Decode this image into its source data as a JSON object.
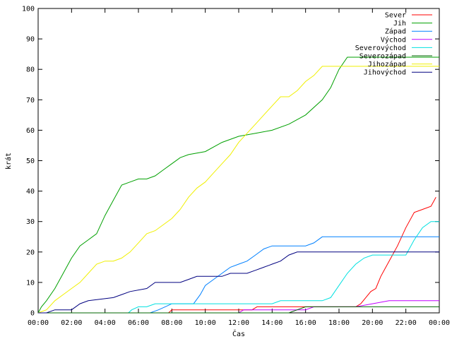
{
  "chart_data": {
    "type": "line",
    "xlabel": "Čas",
    "ylabel": "krát",
    "xlim": [
      0,
      24
    ],
    "ylim": [
      0,
      100
    ],
    "x_ticks": [
      "00:00",
      "02:00",
      "04:00",
      "06:00",
      "08:00",
      "10:00",
      "12:00",
      "14:00",
      "16:00",
      "18:00",
      "20:00",
      "22:00",
      "00:00"
    ],
    "y_ticks": [
      0,
      10,
      20,
      30,
      40,
      50,
      60,
      70,
      80,
      90,
      100
    ],
    "grid": false,
    "legend_position": "top-right",
    "series": [
      {
        "name": "Sever",
        "color": "#ff0000",
        "points": [
          [
            0,
            0
          ],
          [
            7.8,
            0
          ],
          [
            8,
            1
          ],
          [
            12.8,
            1
          ],
          [
            13.1,
            2
          ],
          [
            19,
            2
          ],
          [
            19.3,
            3
          ],
          [
            19.6,
            5
          ],
          [
            19.9,
            7
          ],
          [
            20.2,
            8
          ],
          [
            20.5,
            12
          ],
          [
            21,
            17
          ],
          [
            21.5,
            22
          ],
          [
            22,
            28
          ],
          [
            22.5,
            33
          ],
          [
            23,
            34
          ],
          [
            23.5,
            35
          ],
          [
            23.8,
            38
          ]
        ]
      },
      {
        "name": "Jih",
        "color": "#00a000",
        "points": [
          [
            0,
            0
          ],
          [
            0.2,
            2
          ],
          [
            0.5,
            4
          ],
          [
            1,
            8
          ],
          [
            1.5,
            13
          ],
          [
            2,
            18
          ],
          [
            2.5,
            22
          ],
          [
            3,
            24
          ],
          [
            3.5,
            26
          ],
          [
            4,
            32
          ],
          [
            4.5,
            37
          ],
          [
            5,
            42
          ],
          [
            5.5,
            43
          ],
          [
            6,
            44
          ],
          [
            6.5,
            44
          ],
          [
            7,
            45
          ],
          [
            7.5,
            47
          ],
          [
            8,
            49
          ],
          [
            8.5,
            51
          ],
          [
            9,
            52
          ],
          [
            10,
            53
          ],
          [
            11,
            56
          ],
          [
            12,
            58
          ],
          [
            13,
            59
          ],
          [
            14,
            60
          ],
          [
            15,
            62
          ],
          [
            16,
            65
          ],
          [
            17,
            70
          ],
          [
            17.5,
            74
          ],
          [
            18,
            80
          ],
          [
            18.5,
            84
          ],
          [
            24,
            84
          ]
        ]
      },
      {
        "name": "Západ",
        "color": "#0080ff",
        "points": [
          [
            0,
            0
          ],
          [
            6.7,
            0
          ],
          [
            7.2,
            1
          ],
          [
            7.6,
            2
          ],
          [
            8,
            3
          ],
          [
            9.3,
            3
          ],
          [
            9.7,
            6
          ],
          [
            10,
            9
          ],
          [
            10.5,
            11
          ],
          [
            11,
            13
          ],
          [
            11.5,
            15
          ],
          [
            12,
            16
          ],
          [
            12.5,
            17
          ],
          [
            13,
            19
          ],
          [
            13.5,
            21
          ],
          [
            14,
            22
          ],
          [
            16,
            22
          ],
          [
            16.5,
            23
          ],
          [
            17,
            25
          ],
          [
            24,
            25
          ]
        ]
      },
      {
        "name": "Východ",
        "color": "#c000ff",
        "points": [
          [
            0,
            0
          ],
          [
            12,
            0
          ],
          [
            12.3,
            1
          ],
          [
            16,
            1
          ],
          [
            16.5,
            2
          ],
          [
            19,
            2
          ],
          [
            20,
            3
          ],
          [
            21,
            4
          ],
          [
            24,
            4
          ]
        ]
      },
      {
        "name": "Severovýchod",
        "color": "#00e0e0",
        "points": [
          [
            0,
            0
          ],
          [
            5.4,
            0
          ],
          [
            5.6,
            1
          ],
          [
            6,
            2
          ],
          [
            6.5,
            2
          ],
          [
            7,
            3
          ],
          [
            14,
            3
          ],
          [
            14.5,
            4
          ],
          [
            17,
            4
          ],
          [
            17.5,
            5
          ],
          [
            18,
            9
          ],
          [
            18.5,
            13
          ],
          [
            19,
            16
          ],
          [
            19.5,
            18
          ],
          [
            20,
            19
          ],
          [
            22,
            19
          ],
          [
            22.5,
            24
          ],
          [
            23,
            28
          ],
          [
            23.5,
            30
          ],
          [
            24,
            30
          ]
        ]
      },
      {
        "name": "Severozápad",
        "color": "#006400",
        "points": [
          [
            0,
            0
          ],
          [
            15,
            0
          ],
          [
            15.5,
            1
          ],
          [
            16,
            2
          ],
          [
            24,
            2
          ]
        ]
      },
      {
        "name": "Jihozápad",
        "color": "#f0f000",
        "points": [
          [
            0,
            0
          ],
          [
            0.5,
            1
          ],
          [
            1,
            4
          ],
          [
            1.5,
            6
          ],
          [
            2,
            8
          ],
          [
            2.5,
            10
          ],
          [
            3,
            13
          ],
          [
            3.5,
            16
          ],
          [
            4,
            17
          ],
          [
            4.5,
            17
          ],
          [
            5,
            18
          ],
          [
            5.5,
            20
          ],
          [
            6,
            23
          ],
          [
            6.5,
            26
          ],
          [
            7,
            27
          ],
          [
            7.5,
            29
          ],
          [
            8,
            31
          ],
          [
            8.5,
            34
          ],
          [
            9,
            38
          ],
          [
            9.5,
            41
          ],
          [
            10,
            43
          ],
          [
            10.5,
            46
          ],
          [
            11,
            49
          ],
          [
            11.5,
            52
          ],
          [
            12,
            56
          ],
          [
            12.5,
            59
          ],
          [
            13,
            62
          ],
          [
            13.5,
            65
          ],
          [
            14,
            68
          ],
          [
            14.5,
            71
          ],
          [
            15,
            71
          ],
          [
            15.5,
            73
          ],
          [
            16,
            76
          ],
          [
            16.5,
            78
          ],
          [
            17,
            81
          ],
          [
            18,
            81
          ],
          [
            24,
            81
          ]
        ]
      },
      {
        "name": "Jihovýchod",
        "color": "#000080",
        "points": [
          [
            0,
            0
          ],
          [
            0.5,
            0
          ],
          [
            1,
            1
          ],
          [
            2,
            1
          ],
          [
            2.5,
            3
          ],
          [
            3,
            4
          ],
          [
            4.5,
            5
          ],
          [
            5,
            6
          ],
          [
            5.5,
            7
          ],
          [
            6.5,
            8
          ],
          [
            7,
            10
          ],
          [
            8.5,
            10
          ],
          [
            9,
            11
          ],
          [
            9.5,
            12
          ],
          [
            11,
            12
          ],
          [
            11.5,
            13
          ],
          [
            12.5,
            13
          ],
          [
            13,
            14
          ],
          [
            13.5,
            15
          ],
          [
            14,
            16
          ],
          [
            14.5,
            17
          ],
          [
            15,
            19
          ],
          [
            15.5,
            20
          ],
          [
            24,
            20
          ]
        ]
      }
    ]
  }
}
